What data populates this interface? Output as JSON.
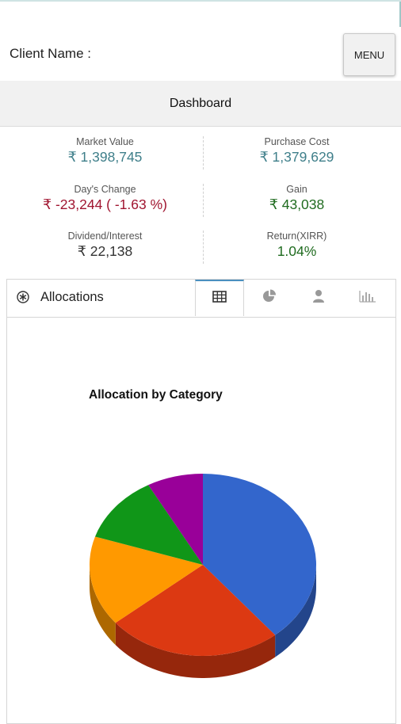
{
  "header": {
    "client_label": "Client Name :",
    "client_value": ".",
    "menu_label": "MENU",
    "dashboard_title": "Dashboard"
  },
  "stats": {
    "market_value": {
      "label": "Market Value",
      "value": "₹ 1,398,745"
    },
    "purchase_cost": {
      "label": "Purchase Cost",
      "value": "₹ 1,379,629"
    },
    "days_change": {
      "label": "Day's Change",
      "value": "₹ -23,244 ( -1.63 %)"
    },
    "gain": {
      "label": "Gain",
      "value": "₹ 43,038"
    },
    "dividend": {
      "label": "Dividend/Interest",
      "value": "₹ 22,138"
    },
    "return": {
      "label": "Return(XIRR)",
      "value": "1.04%"
    }
  },
  "allocations": {
    "title": "Allocations",
    "tabs": [
      {
        "icon": "table-icon",
        "active": true
      },
      {
        "icon": "pie-chart-icon",
        "active": false
      },
      {
        "icon": "person-icon",
        "active": false
      },
      {
        "icon": "bar-chart-icon",
        "active": false
      }
    ],
    "chart_title": "Allocation by Category"
  },
  "chart_data": {
    "type": "pie",
    "title": "Allocation by Category",
    "slices": [
      {
        "value": 39,
        "color": "#3366cc"
      },
      {
        "value": 25,
        "color": "#dc3912"
      },
      {
        "value": 16,
        "color": "#ff9900"
      },
      {
        "value": 12,
        "color": "#109618"
      },
      {
        "value": 8,
        "color": "#990099"
      }
    ]
  }
}
